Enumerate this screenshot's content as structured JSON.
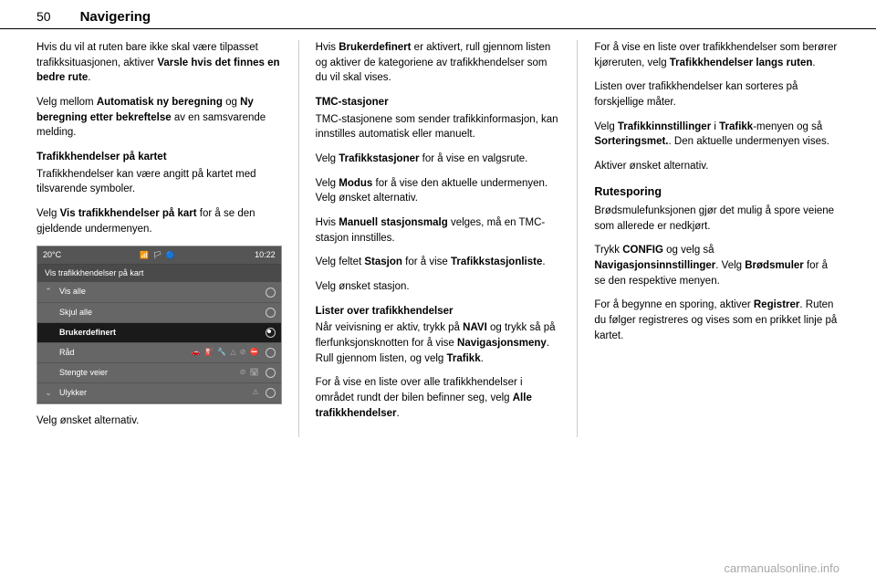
{
  "header": {
    "page_number": "50",
    "section": "Navigering"
  },
  "col1": {
    "p1_a": "Hvis du vil at ruten bare ikke skal være tilpasset trafikksituasjonen, aktiver ",
    "p1_b": "Varsle hvis det finnes en bedre rute",
    "p1_c": ".",
    "p2_a": "Velg mellom ",
    "p2_b": "Automatisk ny beregning",
    "p2_c": " og ",
    "p2_d": "Ny beregning etter bekreftelse",
    "p2_e": " av en samsvarende melding.",
    "sub1": "Trafikkhendelser på kartet",
    "p3": "Trafikkhendelser kan være angitt på kartet med tilsvarende symboler.",
    "p4_a": "Velg ",
    "p4_b": "Vis trafikkhendelser på kart",
    "p4_c": " for å se den gjeldende undermenyen.",
    "shot": {
      "temp": "20°C",
      "time": "10:22",
      "signals": "📶 🏳 🔵",
      "title": "Vis trafikkhendelser på kart",
      "rows": [
        {
          "chev": "⌃",
          "label": "Vis alle",
          "icons": "",
          "selected": false
        },
        {
          "chev": "",
          "label": "Skjul alle",
          "icons": "",
          "selected": false
        },
        {
          "chev": "",
          "label": "Brukerdefinert",
          "icons": "",
          "selected": true
        },
        {
          "chev": "",
          "label": "Råd",
          "icons": "🚗 ⛽ 🔧 △ ⊘ ⛔",
          "selected": false
        },
        {
          "chev": "",
          "label": "Stengte veier",
          "icons": "⊘ 🛣",
          "selected": false
        },
        {
          "chev": "⌄",
          "label": "Ulykker",
          "icons": "⚠",
          "selected": false
        }
      ]
    },
    "p5": "Velg ønsket alternativ."
  },
  "col2": {
    "p1_a": "Hvis ",
    "p1_b": "Brukerdefinert",
    "p1_c": " er aktivert, rull gjennom listen og aktiver de kategoriene av trafikkhendelser som du vil skal vises.",
    "sub1": "TMC-stasjoner",
    "p2": "TMC-stasjonene som sender trafikkinformasjon, kan innstilles automatisk eller manuelt.",
    "p3_a": "Velg ",
    "p3_b": "Trafikkstasjoner",
    "p3_c": " for å vise en valgsrute.",
    "p4_a": "Velg ",
    "p4_b": "Modus",
    "p4_c": " for å vise den aktuelle undermenyen. Velg ønsket alternativ.",
    "p5_a": "Hvis ",
    "p5_b": "Manuell stasjonsmalg",
    "p5_c": " velges, må en TMC-stasjon innstilles.",
    "p6_a": "Velg feltet ",
    "p6_b": "Stasjon",
    "p6_c": " for å vise ",
    "p6_d": "Trafikkstasjonliste",
    "p6_e": ".",
    "p7": "Velg ønsket stasjon.",
    "sub2": "Lister over trafikkhendelser",
    "p8_a": "Når veivisning er aktiv, trykk på ",
    "p8_b": "NAVI",
    "p8_c": " og trykk så på flerfunksjonsknotten for å vise ",
    "p8_d": "Navigasjonsmeny",
    "p8_e": ". Rull gjennom listen, og velg ",
    "p8_f": "Trafikk",
    "p8_g": ".",
    "p9_a": "For å vise en liste over alle trafikkhendelser i området rundt der bilen befinner seg, velg ",
    "p9_b": "Alle trafikkhendelser",
    "p9_c": "."
  },
  "col3": {
    "p1_a": "For å vise en liste over trafikkhendelser som berører kjøreruten, velg ",
    "p1_b": "Trafikkhendelser langs ruten",
    "p1_c": ".",
    "p2": "Listen over trafikkhendelser kan sorteres på forskjellige måter.",
    "p3_a": "Velg ",
    "p3_b": "Trafikkinnstillinger",
    "p3_c": " i ",
    "p3_d": "Trafikk",
    "p3_e": "-menyen og så ",
    "p3_f": "Sorteringsmet.",
    "p3_g": ". Den aktuelle undermenyen vises.",
    "p4": "Aktiver ønsket alternativ.",
    "heading": "Rutesporing",
    "p5": "Brødsmulefunksjonen gjør det mulig å spore veiene som allerede er nedkjørt.",
    "p6_a": "Trykk ",
    "p6_b": "CONFIG",
    "p6_c": " og velg så ",
    "p6_d": "Navigasjonsinnstillinger",
    "p6_e": ". Velg ",
    "p6_f": "Brødsmuler",
    "p6_g": " for å se den respektive menyen.",
    "p7_a": "For å begynne en sporing, aktiver ",
    "p7_b": "Registrer",
    "p7_c": ". Ruten du følger registreres og vises som en prikket linje på kartet."
  },
  "footer": "carmanualsonline.info"
}
